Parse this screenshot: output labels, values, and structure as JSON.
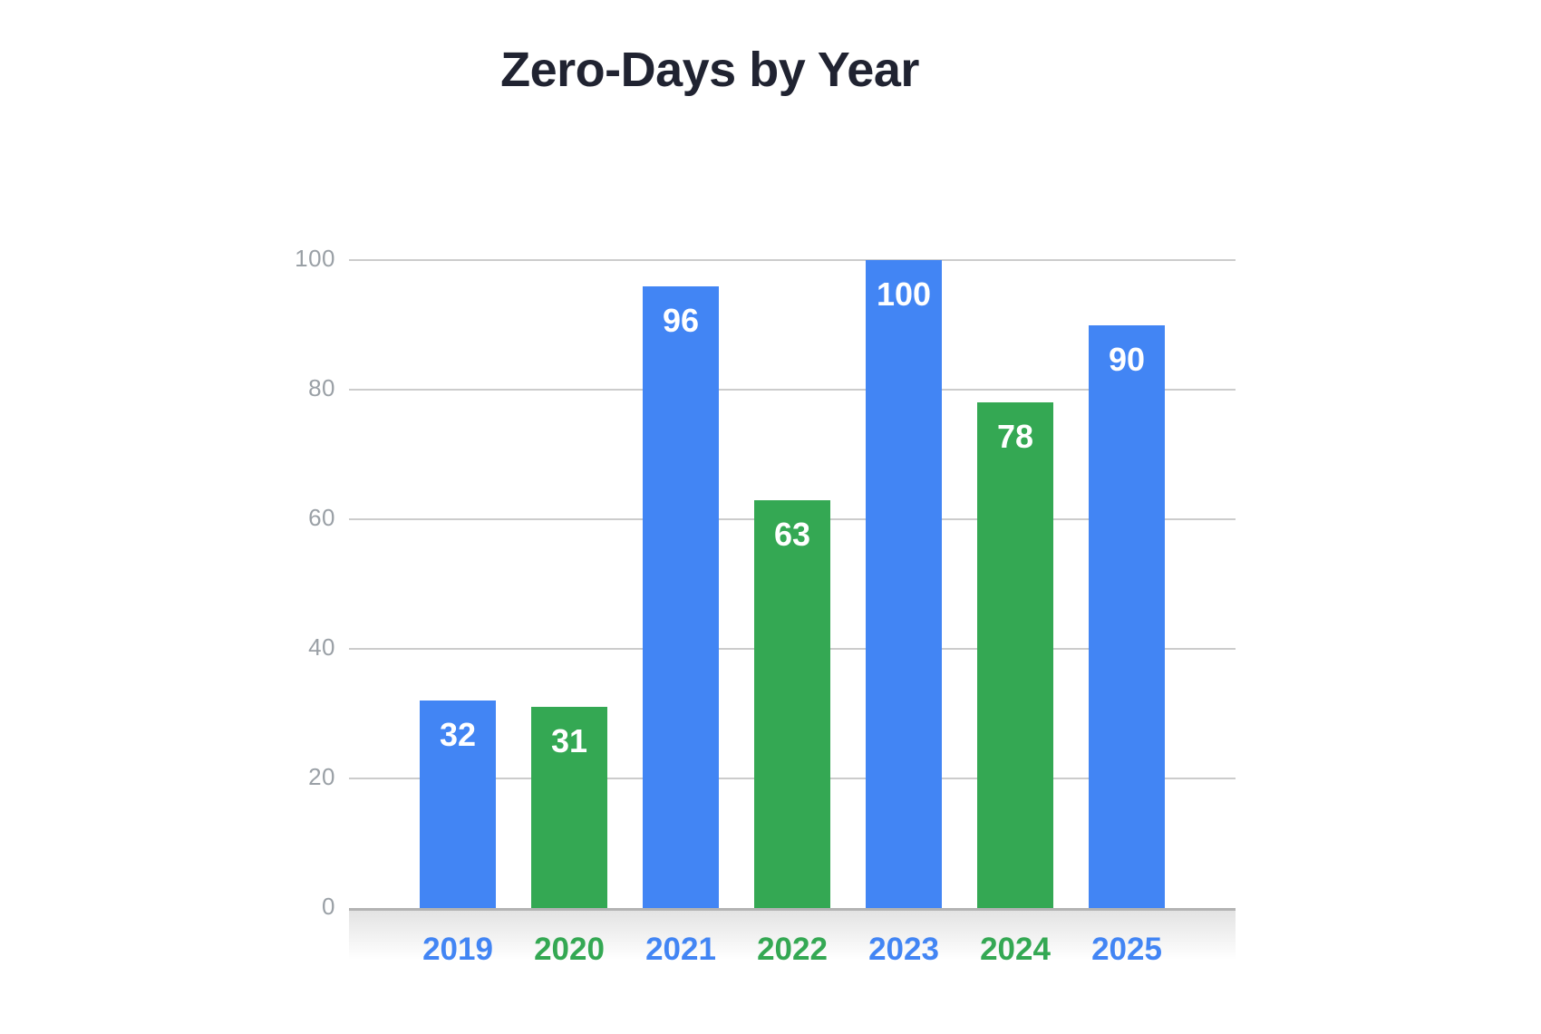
{
  "page": {
    "background": "#ffffff"
  },
  "title": "Zero-Days by Year",
  "colors": {
    "title_text": "#202331",
    "axis_tick_text": "#9aa0a6",
    "gridline": "#cccccc",
    "baseline": "#b3b3b3",
    "bar_blue": "#4285F4",
    "bar_green": "#34A853",
    "value_label_text": "#ffffff",
    "shadow_top": "#e3e3e3"
  },
  "chart_data": {
    "type": "bar",
    "title": "Zero-Days by Year",
    "categories": [
      "2019",
      "2020",
      "2021",
      "2022",
      "2023",
      "2024",
      "2025"
    ],
    "values": [
      32,
      31,
      96,
      63,
      100,
      78,
      90
    ],
    "value_labels": [
      "32",
      "31",
      "96",
      "63",
      "100",
      "78",
      "90"
    ],
    "bar_colors": [
      "#4285F4",
      "#34A853",
      "#4285F4",
      "#34A853",
      "#4285F4",
      "#34A853",
      "#4285F4"
    ],
    "category_label_colors": [
      "#4285F4",
      "#34A853",
      "#4285F4",
      "#34A853",
      "#4285F4",
      "#34A853",
      "#4285F4"
    ],
    "xlabel": "",
    "ylabel": "",
    "yticks": [
      0,
      20,
      40,
      60,
      80,
      100
    ],
    "ytick_labels": [
      "0",
      "20",
      "40",
      "60",
      "80",
      "100"
    ],
    "ylim": [
      0,
      100
    ],
    "grid": "horizontal-only",
    "legend_position": "none",
    "value_label_position": "inside-top"
  }
}
